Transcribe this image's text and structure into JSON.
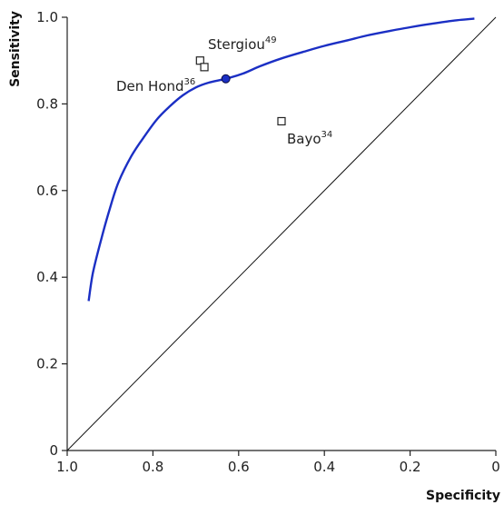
{
  "chart_data": {
    "type": "scatter",
    "title": "",
    "xlabel": "Specificity",
    "ylabel": "Sensitivity",
    "x_reversed": true,
    "xlim": [
      1.0,
      0
    ],
    "ylim": [
      0,
      1.0
    ],
    "xticks": [
      1.0,
      0.8,
      0.6,
      0.4,
      0.2,
      0
    ],
    "xtick_labels": [
      "1.0",
      "0.8",
      "0.6",
      "0.4",
      "0.2",
      "0"
    ],
    "yticks": [
      0,
      0.2,
      0.4,
      0.6,
      0.8,
      1.0
    ],
    "ytick_labels": [
      "0",
      "0.2",
      "0.4",
      "0.6",
      "0.8",
      "1.0"
    ],
    "reference_line": {
      "x": [
        1.0,
        0
      ],
      "y": [
        0,
        1.0
      ]
    },
    "sroc_curve": {
      "color": "#1b2fc4",
      "x": [
        0.95,
        0.94,
        0.92,
        0.9,
        0.88,
        0.85,
        0.82,
        0.79,
        0.76,
        0.73,
        0.7,
        0.67,
        0.63,
        0.59,
        0.55,
        0.5,
        0.45,
        0.4,
        0.35,
        0.3,
        0.25,
        0.2,
        0.15,
        0.1,
        0.05
      ],
      "y": [
        0.345,
        0.41,
        0.49,
        0.56,
        0.62,
        0.68,
        0.725,
        0.765,
        0.795,
        0.82,
        0.838,
        0.849,
        0.858,
        0.87,
        0.887,
        0.905,
        0.92,
        0.934,
        0.946,
        0.958,
        0.968,
        0.977,
        0.985,
        0.992,
        0.997
      ]
    },
    "summary_point": {
      "x": 0.63,
      "y": 0.858,
      "color": "#1b2fc4"
    },
    "studies": [
      {
        "name": "Stergiou",
        "ref": "49",
        "x": 0.69,
        "y": 0.9
      },
      {
        "name": "Den Hond",
        "ref": "36",
        "x": 0.68,
        "y": 0.885
      },
      {
        "name": "Bayo",
        "ref": "34",
        "x": 0.5,
        "y": 0.76
      }
    ]
  }
}
